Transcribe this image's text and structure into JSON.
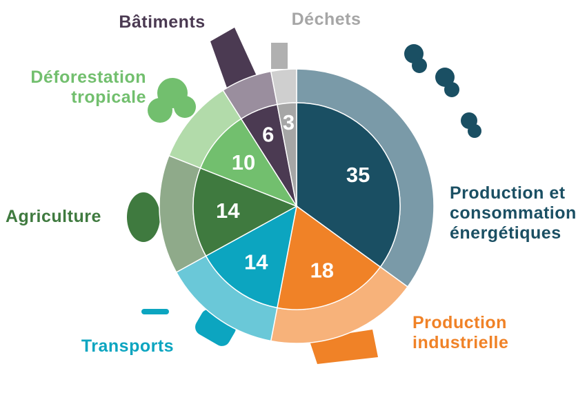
{
  "chart_data": {
    "type": "pie",
    "categories": [
      "Production et consommation énergétiques",
      "Production industrielle",
      "Transports",
      "Agriculture",
      "Déforestation tropicale",
      "Bâtiments",
      "Déchets"
    ],
    "values": [
      35,
      18,
      14,
      14,
      10,
      6,
      3
    ],
    "colors": [
      "#1a4f63",
      "#f08227",
      "#0ca5c0",
      "#3f7a3f",
      "#72bf6e",
      "#4b3a52",
      "#a6a6a6"
    ],
    "ring_colors": [
      "#7a9aa8",
      "#f7b27a",
      "#6ac8d8",
      "#8faa8a",
      "#b2dbaa",
      "#9a8e9e",
      "#cfcfcf"
    ]
  }
}
